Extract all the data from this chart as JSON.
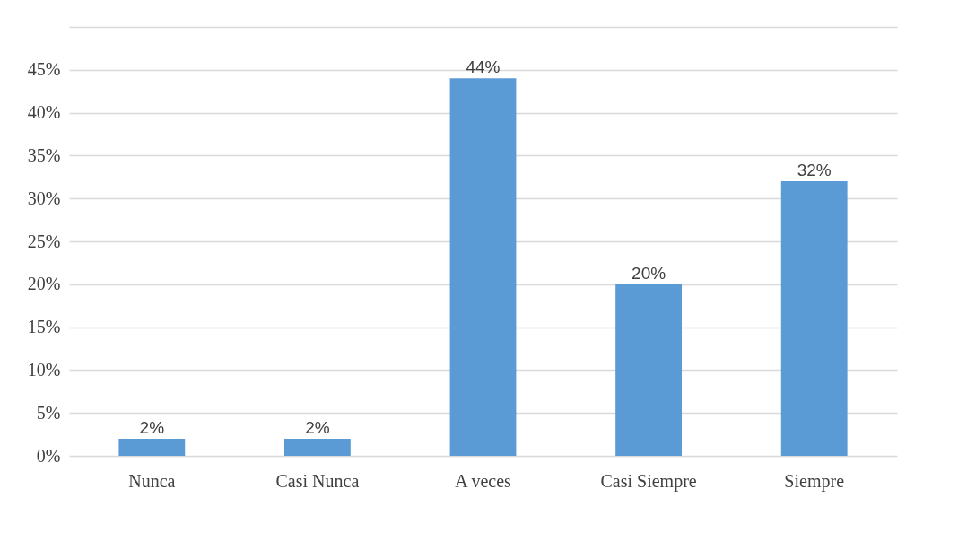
{
  "chart_data": {
    "type": "bar",
    "categories": [
      "Nunca",
      "Casi Nunca",
      "A veces",
      "Casi Siempre",
      "Siempre"
    ],
    "values": [
      2,
      2,
      44,
      20,
      32
    ],
    "value_labels": [
      "2%",
      "2%",
      "44%",
      "20%",
      "32%"
    ],
    "color": "#5b9bd5",
    "ylim": [
      0,
      50
    ],
    "yticks": [
      {
        "value": 0,
        "label": "0%"
      },
      {
        "value": 5,
        "label": "5%"
      },
      {
        "value": 10,
        "label": "10%"
      },
      {
        "value": 15,
        "label": "15%"
      },
      {
        "value": 20,
        "label": "20%"
      },
      {
        "value": 25,
        "label": "25%"
      },
      {
        "value": 30,
        "label": "30%"
      },
      {
        "value": 35,
        "label": "35%"
      },
      {
        "value": 40,
        "label": "40%"
      },
      {
        "value": 45,
        "label": "45%"
      },
      {
        "value": 50,
        "label": null
      }
    ],
    "grid": "y"
  }
}
